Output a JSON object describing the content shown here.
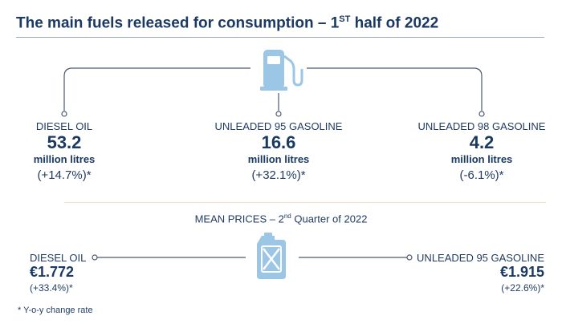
{
  "title": {
    "main": "The main fuels released for consumption – 1",
    "sup": "ST",
    "rest": " half of 2022"
  },
  "consumption": [
    {
      "label": "DIESEL OIL",
      "value": "53.2",
      "unit": "million litres",
      "change": "(+14.7%)*"
    },
    {
      "label": "UNLEADED 95 GASOLINE",
      "value": "16.6",
      "unit": "million litres",
      "change": "(+32.1%)*"
    },
    {
      "label": "UNLEADED 98 GASOLINE",
      "value": "4.2",
      "unit": "million litres",
      "change": "(-6.1%)*"
    }
  ],
  "mean_prices": {
    "header_main": "MEAN PRICES – 2",
    "header_sup": "nd",
    "header_rest": " Quarter of 2022",
    "left": {
      "label": "DIESEL OIL",
      "price": "€1.772",
      "change": "(+33.4%)*"
    },
    "right": {
      "label": "UNLEADED 95 GASOLINE",
      "price": "€1.915",
      "change": "(+22.6%)*"
    }
  },
  "footnote": "* Y-o-y change rate",
  "icons": {
    "top": "fuel-pump-icon",
    "bottom": "jerrycan-icon"
  },
  "colors": {
    "accent": "#9cc6e6",
    "line": "#4a5a6e",
    "title": "#1b3a63"
  }
}
